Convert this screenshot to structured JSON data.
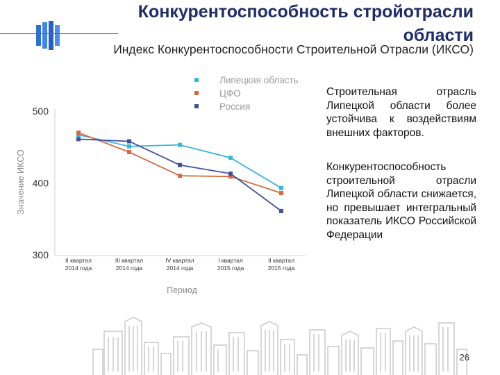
{
  "header": {
    "title": "Конкурентоспособность стройотрасли области",
    "subtitle": "Индекс Конкурентоспособности Строительной Отрасли (ИКСО)"
  },
  "icons": {
    "logo": "building-columns-logo-icon",
    "skyline": "city-skyline-icon"
  },
  "chart_data": {
    "type": "line",
    "categories": [
      [
        "II квартал",
        "2014 года"
      ],
      [
        "III квартал",
        "2014 года"
      ],
      [
        "IV квартал",
        "2014 года"
      ],
      [
        "I квартал",
        "2015 года"
      ],
      [
        "II квартал",
        "2015 года"
      ]
    ],
    "series": [
      {
        "name": "Липецкая область",
        "color": "#36b5de",
        "values": [
          467,
          451,
          453,
          435,
          393
        ]
      },
      {
        "name": "ЦФО",
        "color": "#d8683e",
        "values": [
          470,
          443,
          410,
          409,
          386
        ]
      },
      {
        "name": "Россия",
        "color": "#3f4f9a",
        "values": [
          461,
          458,
          425,
          413,
          361
        ]
      }
    ],
    "ylabel": "Значение ИКСО",
    "xlabel": "Период",
    "ylim": [
      300,
      500
    ],
    "yticks": [
      300,
      400,
      500
    ],
    "legend": "top-center",
    "grid": false
  },
  "text": {
    "paragraph_1": "Строительная отрасль Липецкой области более устойчива к воздействиям внешних факторов.",
    "paragraph_2": "Конкурентоспособность строительной отрасли Липецкой области снижается, но превышает интегральный показатель ИКСО Российской Федерации"
  },
  "footer": {
    "page_number": "26"
  }
}
